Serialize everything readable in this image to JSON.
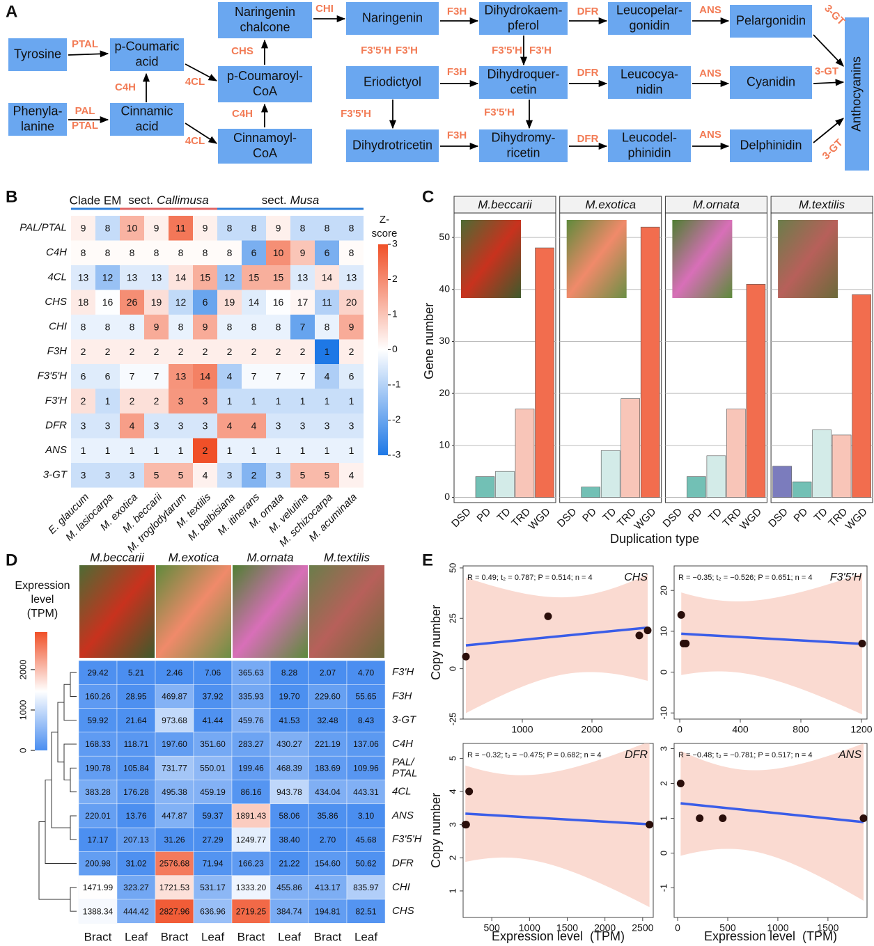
{
  "panel_labels": [
    "A",
    "B",
    "C",
    "D",
    "E"
  ],
  "pathway": {
    "nodes": [
      {
        "label": [
          "Tyrosine"
        ]
      },
      {
        "label": [
          "Phenyla-",
          "lanine"
        ]
      },
      {
        "label": [
          "p-Coumaric",
          "acid"
        ]
      },
      {
        "label": [
          "Cinnamic",
          "acid"
        ]
      },
      {
        "label": [
          "Naringenin",
          "chalcone"
        ]
      },
      {
        "label": [
          "p-Coumaroyl-",
          "CoA"
        ]
      },
      {
        "label": [
          "Cinnamoyl-",
          "CoA"
        ]
      },
      {
        "label": [
          "Naringenin"
        ]
      },
      {
        "label": [
          "Eriodictyol"
        ]
      },
      {
        "label": [
          "Dihydrotricetin"
        ]
      },
      {
        "label": [
          "Dihydrokaem-",
          "pferol"
        ]
      },
      {
        "label": [
          "Dihydroquer-",
          "cetin"
        ]
      },
      {
        "label": [
          "Dihydromy-",
          "ricetin"
        ]
      },
      {
        "label": [
          "Leucopelar-",
          "gonidin"
        ]
      },
      {
        "label": [
          "Leucocya-",
          "nidin"
        ]
      },
      {
        "label": [
          "Leucodel-",
          "phinidin"
        ]
      },
      {
        "label": [
          "Pelargonidin"
        ]
      },
      {
        "label": [
          "Cyanidin"
        ]
      },
      {
        "label": [
          "Delphinidin"
        ]
      },
      {
        "label": [
          "Anthocyanins"
        ]
      }
    ],
    "enzymes": [
      "PTAL",
      "PAL",
      "PTAL",
      "C4H",
      "4CL",
      "4CL",
      "CHS",
      "C4H",
      "CHI",
      "F3H",
      "F3'5'H",
      "F3'H",
      "F3H",
      "F3'5'H",
      "F3H",
      "F3'5'H",
      "F3'H",
      "F3'5'H",
      "DFR",
      "DFR",
      "DFR",
      "ANS",
      "ANS",
      "ANS",
      "3-GT",
      "3-GT",
      "3-GT"
    ]
  },
  "chart_data": [
    {
      "type": "heatmap",
      "groups": [
        "Clade EM",
        [
          "sect.",
          "Callimusa"
        ],
        [
          "sect.",
          "Musa"
        ]
      ],
      "row_labels": [
        "PAL/PTAL",
        "C4H",
        "4CL",
        "CHS",
        "CHI",
        "F3H",
        "F3'5'H",
        "F3'H",
        "DFR",
        "ANS",
        "3-GT"
      ],
      "col_labels": [
        "E. glaucum",
        "M. lasiocarpa",
        "M. exotica",
        "M. beccarii",
        "M. troglodytarum",
        "M. textilis",
        "M. balbisiana",
        "M. itinerans",
        "M. ornata",
        "M. velutina",
        "M. schizocarpa",
        "M. acuminata"
      ],
      "values": [
        [
          9,
          8,
          10,
          9,
          11,
          9,
          8,
          8,
          9,
          8,
          8,
          8
        ],
        [
          8,
          8,
          8,
          8,
          8,
          8,
          8,
          6,
          10,
          9,
          6,
          8
        ],
        [
          13,
          12,
          13,
          13,
          14,
          15,
          12,
          15,
          15,
          13,
          14,
          13
        ],
        [
          18,
          16,
          26,
          19,
          12,
          6,
          19,
          14,
          16,
          17,
          11,
          20
        ],
        [
          8,
          8,
          8,
          9,
          8,
          9,
          8,
          8,
          8,
          7,
          8,
          9
        ],
        [
          2,
          2,
          2,
          2,
          2,
          2,
          2,
          2,
          2,
          2,
          1,
          2
        ],
        [
          6,
          6,
          7,
          7,
          13,
          14,
          4,
          7,
          7,
          7,
          4,
          6
        ],
        [
          2,
          1,
          2,
          2,
          3,
          3,
          1,
          1,
          1,
          1,
          1,
          1
        ],
        [
          3,
          3,
          4,
          3,
          3,
          3,
          4,
          4,
          3,
          3,
          3,
          3
        ],
        [
          1,
          1,
          1,
          1,
          1,
          2,
          1,
          1,
          1,
          1,
          1,
          1
        ],
        [
          3,
          3,
          3,
          5,
          5,
          4,
          3,
          2,
          3,
          5,
          5,
          4
        ]
      ],
      "colorbar": {
        "title": [
          "Z-",
          "score"
        ],
        "lim": [
          -3,
          3
        ],
        "ticks": [
          -3,
          -2,
          -1,
          0,
          1,
          2,
          3
        ]
      }
    },
    {
      "type": "bar",
      "xlabel": "Duplication type",
      "ylabel": "Gene number",
      "categories": [
        "DSD",
        "PD",
        "TD",
        "TRD",
        "WGD"
      ],
      "colors": [
        "#7b7cbd",
        "#72c0b5",
        "#d3ebe8",
        "#f8c5b8",
        "#f26d4e"
      ],
      "ylim": [
        -1,
        54.7
      ],
      "yticks": [
        0,
        10,
        20,
        30,
        40,
        50
      ],
      "grid": true,
      "panels": [
        {
          "title": "M.beccarii",
          "values": [
            0,
            4,
            5,
            17,
            48
          ]
        },
        {
          "title": "M.exotica",
          "values": [
            0,
            2,
            9,
            19,
            52
          ]
        },
        {
          "title": "M.ornata",
          "values": [
            0,
            4,
            8,
            17,
            41
          ]
        },
        {
          "title": "M.textilis",
          "values": [
            6,
            3,
            13,
            12,
            39
          ]
        }
      ]
    },
    {
      "type": "heatmap",
      "col_groups": [
        "M.beccarii",
        "M.exotica",
        "M.ornata",
        "M.textilis"
      ],
      "col_labels": [
        "Bract",
        "Leaf",
        "Bract",
        "Leaf",
        "Bract",
        "Leaf",
        "Bract",
        "Leaf"
      ],
      "row_labels": [
        [
          "F3'H"
        ],
        [
          "F3H"
        ],
        [
          "3-GT"
        ],
        [
          "C4H"
        ],
        [
          "PAL/",
          "PTAL"
        ],
        [
          "4CL"
        ],
        [
          "ANS"
        ],
        [
          "F3'5'H"
        ],
        [
          "DFR"
        ],
        [
          "CHI"
        ],
        [
          "CHS"
        ]
      ],
      "values": [
        [
          29.42,
          5.21,
          2.46,
          7.06,
          365.63,
          8.28,
          2.07,
          4.7
        ],
        [
          160.26,
          28.95,
          469.87,
          37.92,
          335.93,
          19.7,
          229.6,
          55.65
        ],
        [
          59.92,
          21.64,
          973.68,
          41.44,
          459.76,
          41.53,
          32.48,
          8.43
        ],
        [
          168.33,
          118.71,
          197.6,
          351.6,
          283.27,
          430.27,
          221.19,
          137.06
        ],
        [
          190.78,
          105.84,
          731.77,
          550.01,
          199.46,
          468.39,
          183.69,
          109.96
        ],
        [
          383.28,
          176.28,
          495.38,
          459.19,
          86.16,
          943.78,
          434.04,
          443.31
        ],
        [
          220.01,
          13.76,
          447.87,
          59.37,
          1891.43,
          58.06,
          35.86,
          3.1
        ],
        [
          17.17,
          207.13,
          31.26,
          27.29,
          1249.77,
          38.4,
          2.7,
          45.68
        ],
        [
          200.98,
          31.02,
          2576.68,
          71.94,
          166.23,
          21.22,
          154.6,
          50.62
        ],
        [
          1471.99,
          323.27,
          1721.53,
          531.17,
          1333.2,
          455.86,
          413.17,
          835.97
        ],
        [
          1388.34,
          444.42,
          2827.96,
          636.96,
          2719.25,
          384.74,
          194.81,
          82.51
        ]
      ],
      "value_labels": [
        [
          "29.42",
          "5.21",
          "2.46",
          "7.06",
          "365.63",
          "8.28",
          "2.07",
          "4.70"
        ],
        [
          "160.26",
          "28.95",
          "469.87",
          "37.92",
          "335.93",
          "19.70",
          "229.60",
          "55.65"
        ],
        [
          "59.92",
          "21.64",
          "973.68",
          "41.44",
          "459.76",
          "41.53",
          "32.48",
          "8.43"
        ],
        [
          "168.33",
          "118.71",
          "197.60",
          "351.60",
          "283.27",
          "430.27",
          "221.19",
          "137.06"
        ],
        [
          "190.78",
          "105.84",
          "731.77",
          "550.01",
          "199.46",
          "468.39",
          "183.69",
          "109.96"
        ],
        [
          "383.28",
          "176.28",
          "495.38",
          "459.19",
          "86.16",
          "943.78",
          "434.04",
          "443.31"
        ],
        [
          "220.01",
          "13.76",
          "447.87",
          "59.37",
          "1891.43",
          "58.06",
          "35.86",
          "3.10"
        ],
        [
          "17.17",
          "207.13",
          "31.26",
          "27.29",
          "1249.77",
          "38.40",
          "2.70",
          "45.68"
        ],
        [
          "200.98",
          "31.02",
          "2576.68",
          "71.94",
          "166.23",
          "21.22",
          "154.60",
          "50.62"
        ],
        [
          "1471.99",
          "323.27",
          "1721.53",
          "531.17",
          "1333.20",
          "455.86",
          "413.17",
          "835.97"
        ],
        [
          "1388.34",
          "444.42",
          "2827.96",
          "636.96",
          "2719.25",
          "384.74",
          "194.81",
          "82.51"
        ]
      ],
      "colorbar": {
        "title": [
          "Expression",
          "level",
          "(TPM)"
        ],
        "lim": [
          0,
          2930
        ],
        "ticks": [
          0,
          1000,
          2000
        ]
      }
    },
    {
      "type": "scatter",
      "xlabel": "Expression level  (TPM)",
      "ylabel": "Copy number",
      "panels": [
        {
          "gene": "CHS",
          "stats": "R = 0.49; t₂ = 0.787; P = 0.514; n = 4",
          "x": [
            190,
            1370,
            2680,
            2800
          ],
          "y": [
            6,
            26,
            16.5,
            19
          ],
          "xlim": [
            150,
            2880
          ],
          "ylim": [
            -25,
            51
          ],
          "xticks": [
            1000,
            2000
          ],
          "yticks": [
            -25,
            0,
            25,
            50
          ]
        },
        {
          "gene": "F3'5'H",
          "stats": "R = −0.35; t₂ = −0.526; P = 0.651; n = 4",
          "x": [
            10,
            25,
            40,
            1205
          ],
          "y": [
            14,
            7,
            7,
            7
          ],
          "xlim": [
            -37,
            1237
          ],
          "ylim": [
            -11.5,
            26
          ],
          "xticks": [
            0,
            400,
            800,
            1200
          ],
          "yticks": [
            -10,
            0,
            10,
            20
          ]
        },
        {
          "gene": "DFR",
          "stats": "R = −0.32; t₂ = −0.475; P = 0.682; n = 4",
          "x": [
            150,
            160,
            200,
            2590
          ],
          "y": [
            3,
            3,
            4,
            3
          ],
          "xlim": [
            120,
            2640
          ],
          "ylim": [
            0.2,
            5.45
          ],
          "xticks": [
            500,
            1000,
            1500,
            2000,
            2500
          ],
          "yticks": [
            1,
            2,
            3,
            4,
            5
          ]
        },
        {
          "gene": "ANS",
          "stats": "R = −0.48; t₂ = −0.781; P = 0.517; n = 4",
          "x": [
            30,
            220,
            450,
            1855
          ],
          "y": [
            2,
            1,
            1,
            1
          ],
          "xlim": [
            -35,
            1890
          ],
          "ylim": [
            -1.85,
            3.15
          ],
          "xticks": [
            0,
            500,
            1000,
            1500
          ],
          "yticks": [
            -1,
            0,
            1,
            2,
            3
          ]
        }
      ]
    }
  ]
}
